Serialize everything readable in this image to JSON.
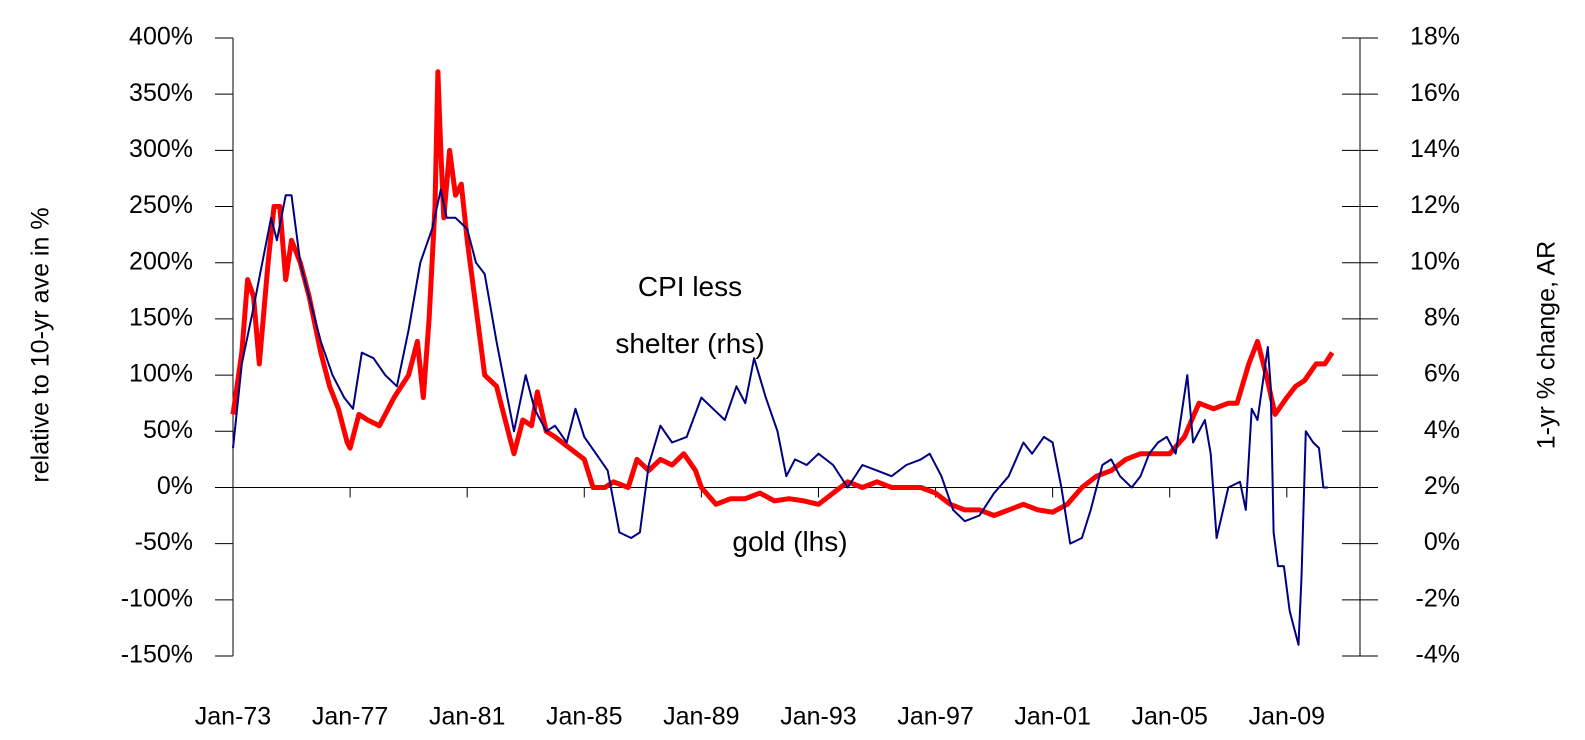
{
  "chart_data": {
    "type": "line",
    "y_label": "relative to 10-yr ave in %",
    "y2_label": "1-yr % change, AR",
    "xlim": [
      1973,
      2011.5
    ],
    "xticks": [
      {
        "value": 1973,
        "label": "Jan-73"
      },
      {
        "value": 1977,
        "label": "Jan-77"
      },
      {
        "value": 1981,
        "label": "Jan-81"
      },
      {
        "value": 1985,
        "label": "Jan-85"
      },
      {
        "value": 1989,
        "label": "Jan-89"
      },
      {
        "value": 1993,
        "label": "Jan-93"
      },
      {
        "value": 1997,
        "label": "Jan-97"
      },
      {
        "value": 2001,
        "label": "Jan-01"
      },
      {
        "value": 2005,
        "label": "Jan-05"
      },
      {
        "value": 2009,
        "label": "Jan-09"
      }
    ],
    "ylim": [
      -150,
      400
    ],
    "yticks": [
      {
        "value": -150,
        "label": "-150%"
      },
      {
        "value": -100,
        "label": "-100%"
      },
      {
        "value": -50,
        "label": "-50%"
      },
      {
        "value": 0,
        "label": "0%"
      },
      {
        "value": 50,
        "label": "50%"
      },
      {
        "value": 100,
        "label": "100%"
      },
      {
        "value": 150,
        "label": "150%"
      },
      {
        "value": 200,
        "label": "200%"
      },
      {
        "value": 250,
        "label": "250%"
      },
      {
        "value": 300,
        "label": "300%"
      },
      {
        "value": 350,
        "label": "350%"
      },
      {
        "value": 400,
        "label": "400%"
      }
    ],
    "y2lim": [
      -4,
      18
    ],
    "y2ticks": [
      {
        "value": -4,
        "label": "-4%"
      },
      {
        "value": -2,
        "label": "-2%"
      },
      {
        "value": 0,
        "label": "0%"
      },
      {
        "value": 2,
        "label": "2%"
      },
      {
        "value": 4,
        "label": "4%"
      },
      {
        "value": 6,
        "label": "6%"
      },
      {
        "value": 8,
        "label": "8%"
      },
      {
        "value": 10,
        "label": "10%"
      },
      {
        "value": 12,
        "label": "12%"
      },
      {
        "value": 14,
        "label": "14%"
      },
      {
        "value": 16,
        "label": "16%"
      },
      {
        "value": 18,
        "label": "18%"
      }
    ],
    "series": [
      {
        "name": "gold (lhs)",
        "color": "#ff0000",
        "width": 5,
        "x": [
          1973.0,
          1973.3,
          1973.5,
          1973.7,
          1973.9,
          1974.2,
          1974.4,
          1974.6,
          1974.8,
          1975.0,
          1975.3,
          1975.6,
          1976.0,
          1976.3,
          1976.6,
          1976.9,
          1977.0,
          1977.3,
          1977.6,
          1978.0,
          1978.5,
          1979.0,
          1979.3,
          1979.5,
          1979.7,
          1979.9,
          1980.0,
          1980.1,
          1980.2,
          1980.4,
          1980.6,
          1980.8,
          1981.0,
          1981.3,
          1981.6,
          1982.0,
          1982.3,
          1982.6,
          1982.9,
          1983.2,
          1983.4,
          1983.7,
          1984.0,
          1984.5,
          1985.0,
          1985.3,
          1985.7,
          1986.0,
          1986.5,
          1986.8,
          1987.2,
          1987.6,
          1988.0,
          1988.4,
          1988.8,
          1989.0,
          1989.5,
          1990.0,
          1990.5,
          1991.0,
          1991.5,
          1992.0,
          1992.5,
          1993.0,
          1993.5,
          1994.0,
          1994.5,
          1995.0,
          1995.5,
          1996.0,
          1996.5,
          1997.0,
          1997.5,
          1998.0,
          1998.5,
          1999.0,
          1999.5,
          2000.0,
          2000.5,
          2001.0,
          2001.5,
          2002.0,
          2002.5,
          2003.0,
          2003.5,
          2004.0,
          2004.5,
          2005.0,
          2005.5,
          2006.0,
          2006.5,
          2007.0,
          2007.3,
          2007.7,
          2008.0,
          2008.3,
          2008.6,
          2009.0,
          2009.3,
          2009.6,
          2010.0,
          2010.3,
          2010.55
        ],
        "values": [
          65,
          120,
          185,
          170,
          110,
          200,
          250,
          250,
          185,
          220,
          200,
          170,
          120,
          90,
          70,
          40,
          35,
          65,
          60,
          55,
          80,
          100,
          130,
          80,
          150,
          250,
          370,
          300,
          240,
          300,
          260,
          270,
          220,
          160,
          100,
          90,
          60,
          30,
          60,
          55,
          85,
          50,
          45,
          35,
          25,
          0,
          0,
          5,
          0,
          25,
          15,
          25,
          20,
          30,
          15,
          0,
          -15,
          -10,
          -10,
          -5,
          -12,
          -10,
          -12,
          -15,
          -5,
          5,
          0,
          5,
          0,
          0,
          0,
          -5,
          -15,
          -20,
          -20,
          -25,
          -20,
          -15,
          -20,
          -22,
          -15,
          0,
          10,
          15,
          25,
          30,
          30,
          30,
          45,
          75,
          70,
          75,
          75,
          110,
          130,
          100,
          65,
          80,
          90,
          95,
          110,
          110,
          120
        ]
      },
      {
        "name": "CPI less shelter (rhs)",
        "color": "#000080",
        "width": 2,
        "axis": "y2",
        "x": [
          1973.0,
          1973.3,
          1973.7,
          1974.0,
          1974.3,
          1974.5,
          1974.8,
          1975.0,
          1975.3,
          1975.7,
          1976.0,
          1976.4,
          1976.8,
          1977.1,
          1977.4,
          1977.8,
          1978.2,
          1978.6,
          1979.0,
          1979.4,
          1979.8,
          1980.1,
          1980.3,
          1980.6,
          1981.0,
          1981.3,
          1981.6,
          1982.0,
          1982.3,
          1982.6,
          1983.0,
          1983.3,
          1983.7,
          1984.0,
          1984.4,
          1984.7,
          1985.0,
          1985.4,
          1985.8,
          1986.2,
          1986.6,
          1986.9,
          1987.2,
          1987.6,
          1988.0,
          1988.5,
          1989.0,
          1989.4,
          1989.8,
          1990.2,
          1990.5,
          1990.8,
          1991.2,
          1991.6,
          1991.9,
          1992.2,
          1992.6,
          1993.0,
          1993.5,
          1994.0,
          1994.5,
          1995.0,
          1995.5,
          1996.0,
          1996.5,
          1996.8,
          1997.2,
          1997.6,
          1998.0,
          1998.5,
          1999.0,
          1999.5,
          2000.0,
          2000.3,
          2000.7,
          2001.0,
          2001.3,
          2001.6,
          2002.0,
          2002.3,
          2002.7,
          2003.0,
          2003.3,
          2003.7,
          2004.0,
          2004.3,
          2004.6,
          2004.9,
          2005.2,
          2005.6,
          2005.8,
          2006.2,
          2006.4,
          2006.6,
          2007.0,
          2007.4,
          2007.6,
          2007.8,
          2008.0,
          2008.35,
          2008.45,
          2008.55,
          2008.7,
          2008.9,
          2009.1,
          2009.4,
          2009.5,
          2009.65,
          2009.9,
          2010.1,
          2010.25,
          2010.4
        ],
        "values": [
          3.4,
          6.4,
          8.4,
          10,
          11.6,
          10.8,
          12.4,
          12.4,
          10,
          8.4,
          7.2,
          6,
          5.2,
          4.8,
          6.8,
          6.6,
          6,
          5.6,
          7.6,
          10,
          11.2,
          12.6,
          11.6,
          11.6,
          11.2,
          10,
          9.6,
          7.2,
          5.6,
          4,
          6,
          4.8,
          4,
          4.2,
          3.6,
          4.8,
          3.8,
          3.2,
          2.6,
          0.4,
          0.2,
          0.4,
          2.8,
          4.2,
          3.6,
          3.8,
          5.2,
          4.8,
          4.4,
          5.6,
          5,
          6.6,
          5.2,
          4,
          2.4,
          3,
          2.8,
          3.2,
          2.8,
          2,
          2.8,
          2.6,
          2.4,
          2.8,
          3,
          3.2,
          2.4,
          1.2,
          0.8,
          1,
          1.8,
          2.4,
          3.6,
          3.2,
          3.8,
          3.6,
          2,
          0,
          0.2,
          1.2,
          2.8,
          3,
          2.4,
          2,
          2.4,
          3.2,
          3.6,
          3.8,
          3.2,
          6,
          3.6,
          4.4,
          3.2,
          0.2,
          2,
          2.2,
          1.2,
          4.8,
          4.4,
          7,
          5.6,
          0.4,
          -0.8,
          -0.8,
          -2.4,
          -3.6,
          -1.2,
          4,
          3.6,
          3.4,
          2,
          2
        ]
      }
    ]
  }
}
